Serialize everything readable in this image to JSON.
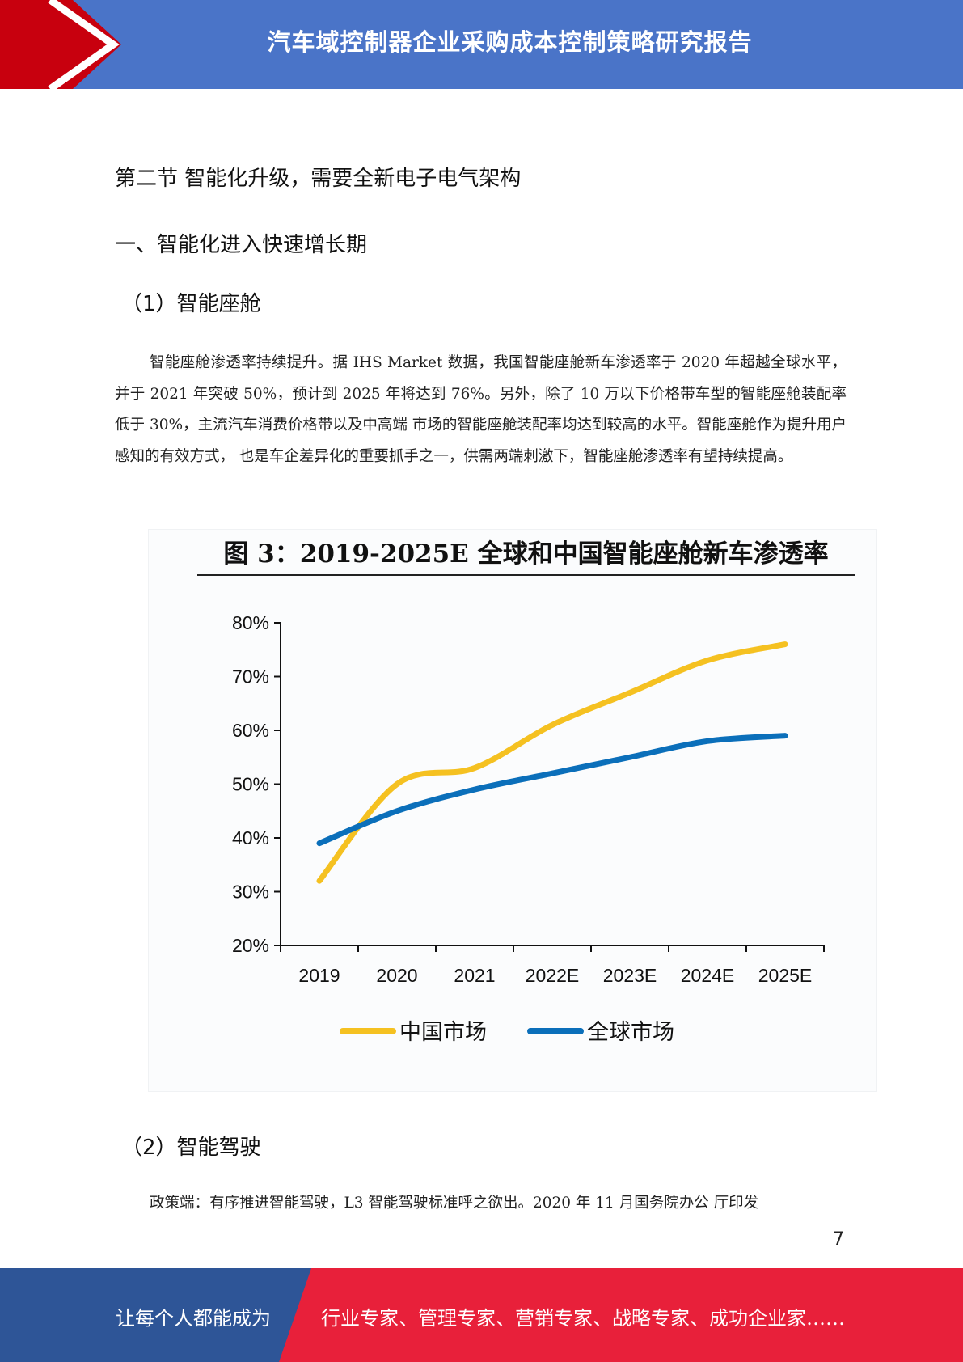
{
  "header": {
    "title": "汽车域控制器企业采购成本控制策略研究报告"
  },
  "section_title": "第二节 智能化升级，需要全新电子电气架构",
  "subsection_title": "一、智能化进入快速增长期",
  "item1_title": "（1）智能座舱",
  "paragraph1": "智能座舱渗透率持续提升。据 IHS Market 数据，我国智能座舱新车渗透率于 2020 年超越全球水平，并于 2021 年突破 50%，预计到 2025 年将达到 76%。另外，除了 10 万以下价格带车型的智能座舱装配率低于 30%，主流汽车消费价格带以及中高端 市场的智能座舱装配率均达到较高的水平。智能座舱作为提升用户感知的有效方式， 也是车企差异化的重要抓手之一，供需两端刺激下，智能座舱渗透率有望持续提高。",
  "figure_title": "图 3：2019-2025E 全球和中国智能座舱新车渗透率",
  "chart_data": {
    "type": "line",
    "title": "图 3：2019-2025E 全球和中国智能座舱新车渗透率",
    "categories": [
      "2019",
      "2020",
      "2021",
      "2022E",
      "2023E",
      "2024E",
      "2025E"
    ],
    "y_ticks": [
      "20%",
      "30%",
      "40%",
      "50%",
      "60%",
      "70%",
      "80%"
    ],
    "ylim": [
      20,
      80
    ],
    "y_unit": "%",
    "series": [
      {
        "name": "中国市场",
        "color": "#f5c121",
        "values": [
          32,
          50,
          53,
          61,
          67,
          73,
          76
        ]
      },
      {
        "name": "全球市场",
        "color": "#0b6fba",
        "values": [
          39,
          45,
          49,
          52,
          55,
          58,
          59
        ]
      }
    ],
    "legend_position": "bottom",
    "grid": false
  },
  "item2_title": "（2）智能驾驶",
  "paragraph2": "政策端：有序推进智能驾驶，L3 智能驾驶标准呼之欲出。2020 年 11 月国务院办公 厅印发",
  "page_number": "7",
  "footer": {
    "left_text": "让每个人都能成为",
    "right_text": "行业专家、管理专家、营销专家、战略专家、成功企业家……"
  },
  "colors": {
    "header_blue": "#4a74c8",
    "header_red": "#c8000e",
    "footer_blue": "#2e5597",
    "footer_red": "#e8203a"
  }
}
